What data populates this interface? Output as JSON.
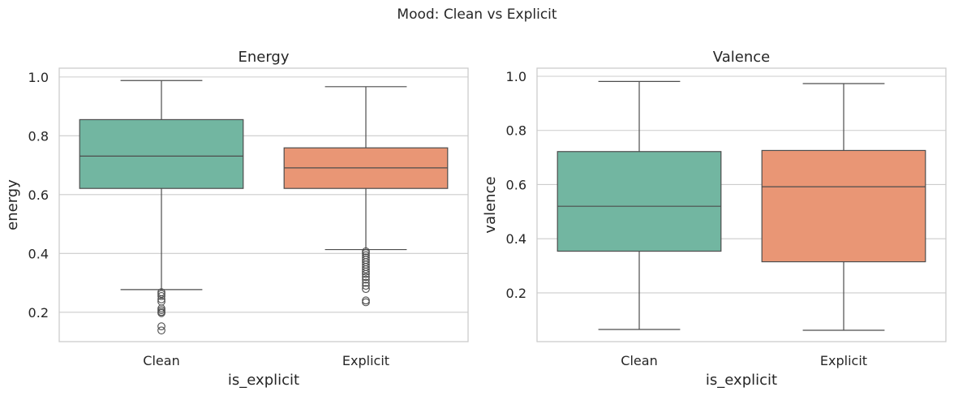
{
  "figure_title": "Mood: Clean vs Explicit",
  "colors": {
    "Clean": "#72b6a1",
    "Explicit": "#e99675",
    "line": "#4d4d4d",
    "grid": "#cccccc",
    "frame": "#cccccc"
  },
  "chart_data": [
    {
      "type": "box",
      "title": "Energy",
      "xlabel": "is_explicit",
      "ylabel": "energy",
      "categories": [
        "Clean",
        "Explicit"
      ],
      "ylim": [
        0.1,
        1.03
      ],
      "yticks": [
        0.2,
        0.4,
        0.6,
        0.8,
        1.0
      ],
      "ytick_labels": [
        "0.2",
        "0.4",
        "0.6",
        "0.8",
        "1.0"
      ],
      "grid": "horizontal",
      "boxes": [
        {
          "category": "Clean",
          "whisker_low": 0.277,
          "q1": 0.621,
          "median": 0.731,
          "q3": 0.855,
          "whisker_high": 0.988,
          "outliers": [
            0.268,
            0.262,
            0.255,
            0.244,
            0.236,
            0.213,
            0.207,
            0.201,
            0.197,
            0.152,
            0.138
          ]
        },
        {
          "category": "Explicit",
          "whisker_low": 0.413,
          "q1": 0.621,
          "median": 0.691,
          "q3": 0.759,
          "whisker_high": 0.967,
          "outliers": [
            0.407,
            0.401,
            0.394,
            0.386,
            0.378,
            0.37,
            0.362,
            0.354,
            0.346,
            0.338,
            0.33,
            0.32,
            0.311,
            0.3,
            0.29,
            0.279,
            0.24,
            0.234
          ]
        }
      ]
    },
    {
      "type": "box",
      "title": "Valence",
      "xlabel": "is_explicit",
      "ylabel": "valence",
      "categories": [
        "Clean",
        "Explicit"
      ],
      "ylim": [
        0.02,
        1.03
      ],
      "yticks": [
        0.2,
        0.4,
        0.6,
        0.8,
        1.0
      ],
      "ytick_labels": [
        "0.2",
        "0.4",
        "0.6",
        "0.8",
        "1.0"
      ],
      "grid": "horizontal",
      "boxes": [
        {
          "category": "Clean",
          "whisker_low": 0.065,
          "q1": 0.354,
          "median": 0.52,
          "q3": 0.722,
          "whisker_high": 0.981,
          "outliers": []
        },
        {
          "category": "Explicit",
          "whisker_low": 0.062,
          "q1": 0.315,
          "median": 0.592,
          "q3": 0.726,
          "whisker_high": 0.973,
          "outliers": []
        }
      ]
    }
  ]
}
